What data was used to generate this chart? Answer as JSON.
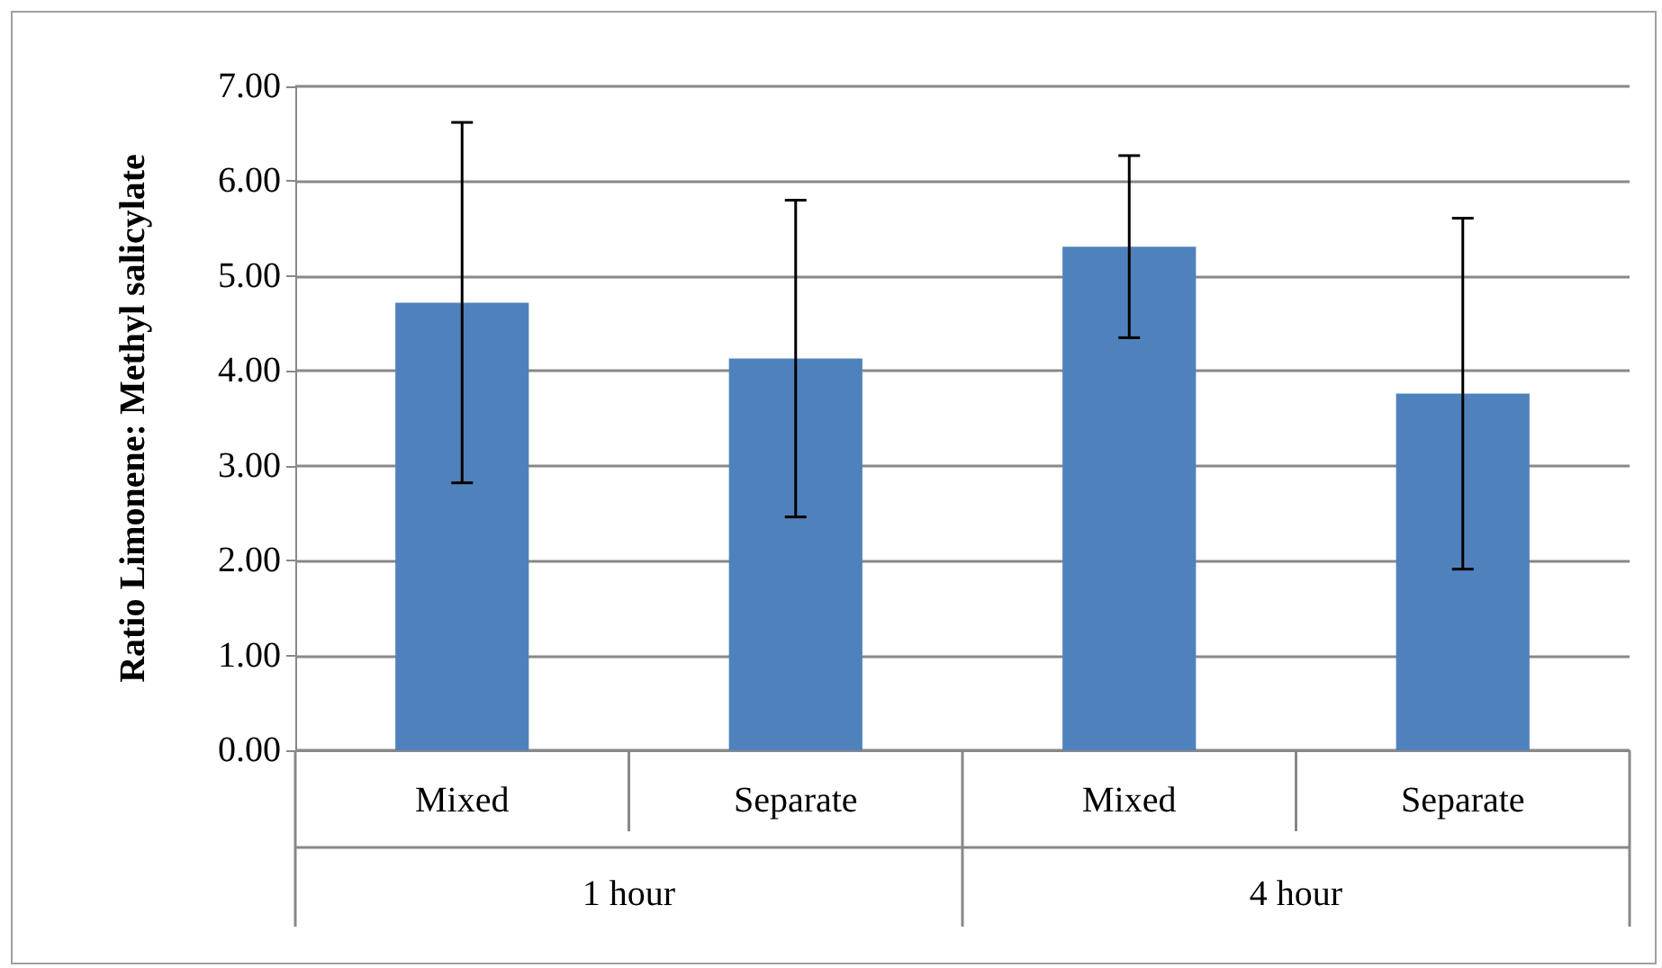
{
  "chart_data": {
    "type": "bar",
    "ylabel": "Ratio Limonene: Methyl salicylate",
    "categories": [
      "Mixed",
      "Separate",
      "Mixed",
      "Separate"
    ],
    "values": [
      4.72,
      4.13,
      5.31,
      3.76
    ],
    "errors": [
      1.9,
      1.67,
      0.96,
      1.85
    ],
    "color": "#4f81bd",
    "annotations": [
      "1 hour",
      "4 hour"
    ],
    "ylim": [
      0,
      7
    ],
    "yticks": [
      {
        "value": 0,
        "label": "0.00"
      },
      {
        "value": 1,
        "label": "1.00"
      },
      {
        "value": 2,
        "label": "2.00"
      },
      {
        "value": 3,
        "label": "3.00"
      },
      {
        "value": 4,
        "label": "4.00"
      },
      {
        "value": 5,
        "label": "5.00"
      },
      {
        "value": 6,
        "label": "6.00"
      },
      {
        "value": 7,
        "label": "7.00"
      }
    ],
    "grid": "y"
  }
}
